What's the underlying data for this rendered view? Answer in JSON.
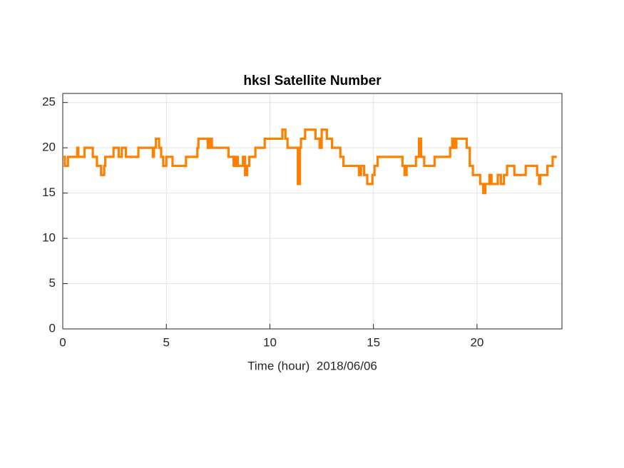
{
  "chart_data": {
    "type": "line",
    "title": "hksl Satellite Number",
    "xlabel": "Time (hour)  2018/06/06",
    "x": [
      0,
      0.1,
      0.25,
      0.7,
      0.75,
      1.05,
      1.45,
      1.65,
      1.85,
      2.0,
      2.05,
      2.45,
      2.7,
      2.85,
      3.05,
      3.65,
      4.35,
      4.4,
      4.5,
      4.65,
      4.75,
      4.85,
      5.0,
      5.3,
      5.95,
      6.5,
      6.55,
      7.0,
      7.1,
      7.2,
      8.0,
      8.25,
      8.35,
      8.45,
      8.7,
      8.8,
      8.9,
      9.0,
      9.3,
      9.75,
      10.6,
      10.75,
      10.85,
      11.35,
      11.45,
      11.5,
      11.7,
      12.2,
      12.4,
      12.5,
      12.75,
      13.0,
      13.4,
      13.55,
      14.3,
      14.4,
      14.55,
      14.7,
      14.95,
      15.05,
      15.2,
      16.4,
      16.5,
      16.6,
      17.05,
      17.2,
      17.3,
      17.45,
      17.95,
      18.7,
      18.8,
      18.9,
      19.0,
      19.5,
      19.65,
      19.8,
      20.15,
      20.3,
      20.4,
      20.6,
      20.7,
      21.0,
      21.15,
      21.3,
      21.45,
      21.8,
      22.35,
      22.9,
      23.0,
      23.05,
      23.4,
      23.65,
      23.85
    ],
    "values": [
      19,
      18,
      19,
      20,
      19,
      20,
      19,
      18,
      17,
      18,
      19,
      20,
      19,
      20,
      19,
      20,
      19,
      20,
      21,
      20,
      19,
      18,
      19,
      18,
      19,
      20,
      21,
      20,
      21,
      20,
      19,
      18,
      19,
      18,
      19,
      17,
      18,
      19,
      20,
      21,
      22,
      21,
      20,
      16,
      20,
      21,
      22,
      21,
      20,
      22,
      21,
      20,
      19,
      18,
      17,
      18,
      17,
      16,
      17,
      18,
      19,
      18,
      17,
      18,
      19,
      21,
      19,
      18,
      19,
      20,
      21,
      20,
      21,
      20,
      18,
      17,
      16,
      15,
      16,
      17,
      16,
      17,
      16,
      17,
      18,
      17,
      18,
      17,
      16,
      17,
      18,
      19,
      19
    ],
    "color": "#ff8000",
    "step": true,
    "xlim": [
      0,
      24.1
    ],
    "xticks": [
      0,
      5,
      10,
      15,
      20
    ],
    "ylim": [
      0,
      26
    ],
    "yticks": [
      0,
      5,
      10,
      15,
      20,
      25
    ],
    "grid": true
  }
}
